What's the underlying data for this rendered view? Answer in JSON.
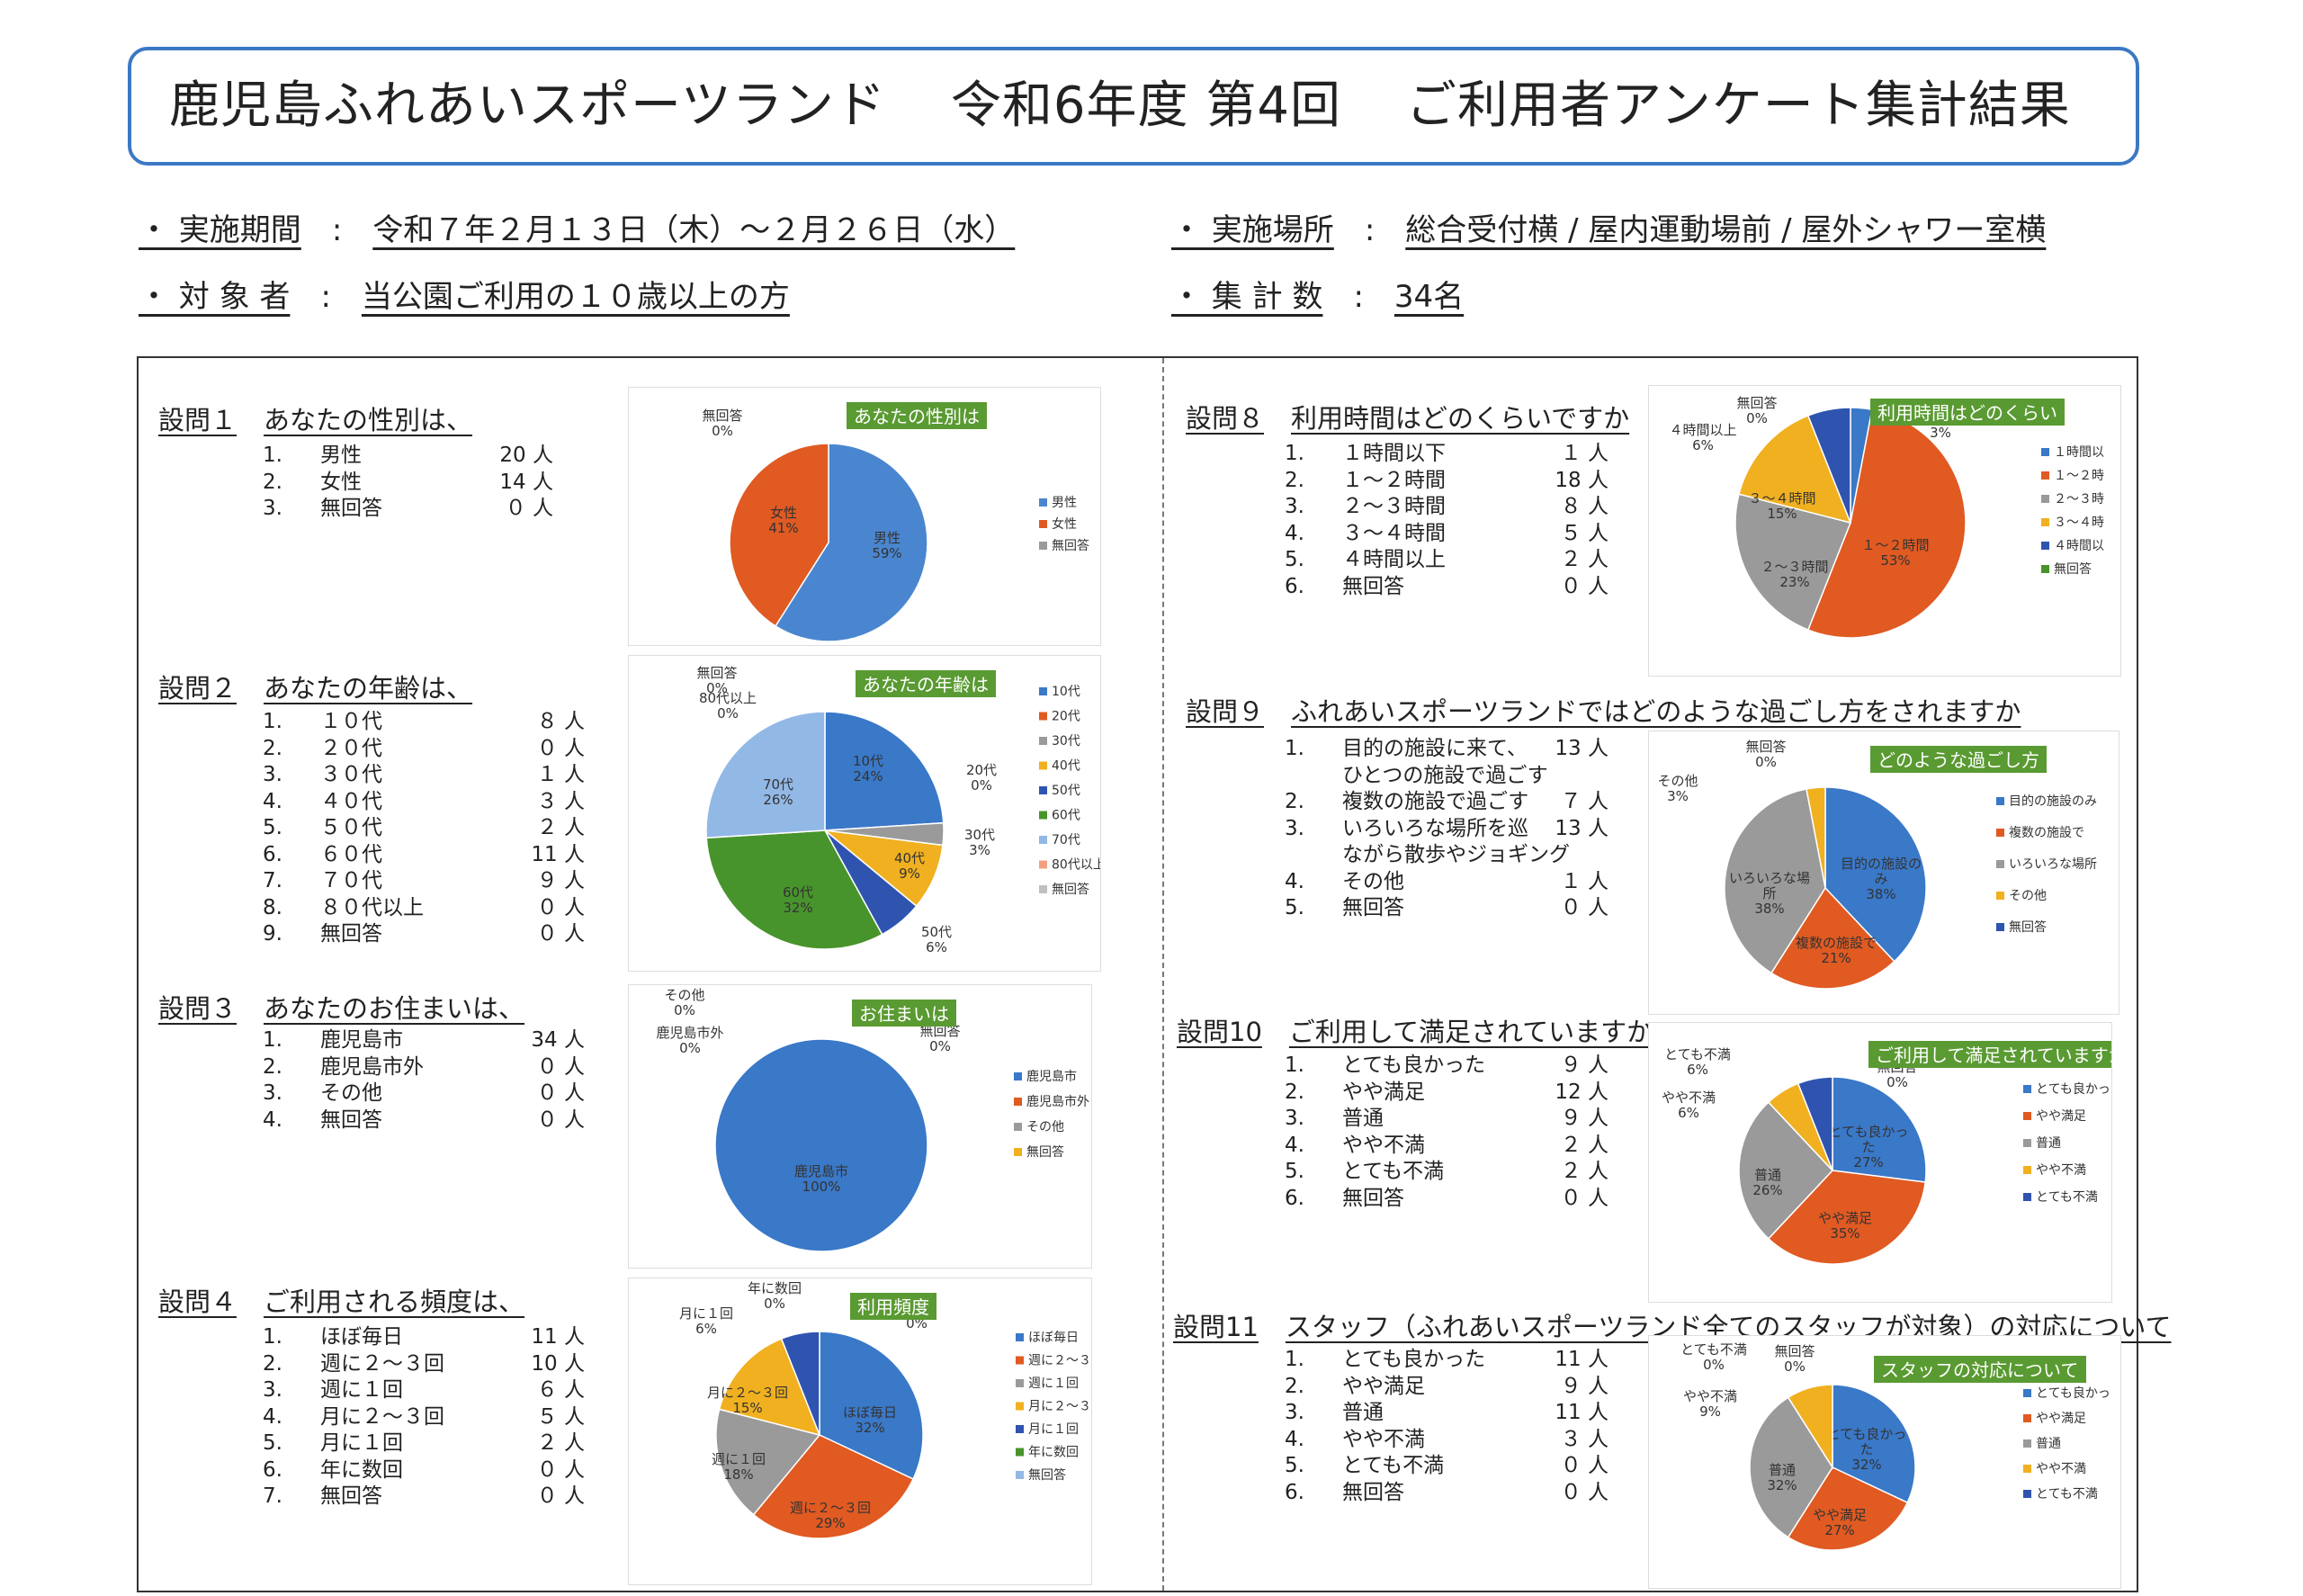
{
  "header": {
    "facility": "鹿児島ふれあいスポーツランド",
    "term": "令和6年度 第4回",
    "title": "ご利用者アンケート集計結果"
  },
  "meta": {
    "period_label": "・ 実施期間",
    "period_value": "令和７年２月１３日（木）～２月２６日（水）",
    "place_label": "・ 実施場所",
    "place_value": "総合受付横 / 屋内運動場前 / 屋外シャワー室横",
    "target_label": "・ 対 象 者",
    "target_value": "当公園ご利用の１０歳以上の方",
    "count_label": "・ 集 計 数",
    "count_value": "34名",
    "sep": ":"
  },
  "questions": [
    {
      "num": "設問１",
      "title": "あなたの性別は、",
      "answers": [
        {
          "n": "1.",
          "label": "男性",
          "count": "20 人"
        },
        {
          "n": "2.",
          "label": "女性",
          "count": "14 人"
        },
        {
          "n": "3.",
          "label": "無回答",
          "count": "０ 人"
        }
      ]
    },
    {
      "num": "設問２",
      "title": "あなたの年齢は、",
      "answers": [
        {
          "n": "1.",
          "label": "１０代",
          "count": "８ 人"
        },
        {
          "n": "2.",
          "label": "２０代",
          "count": "０ 人"
        },
        {
          "n": "3.",
          "label": "３０代",
          "count": "１ 人"
        },
        {
          "n": "4.",
          "label": "４０代",
          "count": "３ 人"
        },
        {
          "n": "5.",
          "label": "５０代",
          "count": "２ 人"
        },
        {
          "n": "6.",
          "label": "６０代",
          "count": "11 人"
        },
        {
          "n": "7.",
          "label": "７０代",
          "count": "９ 人"
        },
        {
          "n": "8.",
          "label": "８０代以上",
          "count": "０ 人"
        },
        {
          "n": "9.",
          "label": "無回答",
          "count": "０ 人"
        }
      ]
    },
    {
      "num": "設問３",
      "title": "あなたのお住まいは、",
      "answers": [
        {
          "n": "1.",
          "label": "鹿児島市",
          "count": "34 人"
        },
        {
          "n": "2.",
          "label": "鹿児島市外",
          "count": "０ 人"
        },
        {
          "n": "3.",
          "label": "その他",
          "count": "０ 人"
        },
        {
          "n": "4.",
          "label": "無回答",
          "count": "０ 人"
        }
      ]
    },
    {
      "num": "設問４",
      "title": "ご利用される頻度は、",
      "answers": [
        {
          "n": "1.",
          "label": "ほぼ毎日",
          "count": "11 人"
        },
        {
          "n": "2.",
          "label": "週に２～３回",
          "count": "10 人"
        },
        {
          "n": "3.",
          "label": "週に１回",
          "count": "６ 人"
        },
        {
          "n": "4.",
          "label": "月に２～３回",
          "count": "５ 人"
        },
        {
          "n": "5.",
          "label": "月に１回",
          "count": "２ 人"
        },
        {
          "n": "6.",
          "label": "年に数回",
          "count": "０ 人"
        },
        {
          "n": "7.",
          "label": "無回答",
          "count": "０ 人"
        }
      ]
    },
    {
      "num": "設問８",
      "title": "利用時間はどのくらいですか",
      "answers": [
        {
          "n": "1.",
          "label": "１時間以下",
          "count": "１ 人"
        },
        {
          "n": "2.",
          "label": "１～２時間",
          "count": "18 人"
        },
        {
          "n": "3.",
          "label": "２～３時間",
          "count": "８ 人"
        },
        {
          "n": "4.",
          "label": "３～４時間",
          "count": "５ 人"
        },
        {
          "n": "5.",
          "label": "４時間以上",
          "count": "２ 人"
        },
        {
          "n": "6.",
          "label": "無回答",
          "count": "０ 人"
        }
      ]
    },
    {
      "num": "設問９",
      "title": "ふれあいスポーツランドではどのような過ごし方をされますか",
      "answers": [
        {
          "n": "1.",
          "label": "目的の施設に来て、",
          "count": "13 人"
        },
        {
          "n": "",
          "label": "ひとつの施設で過ごす",
          "count": ""
        },
        {
          "n": "2.",
          "label": "複数の施設で過ごす",
          "count": "７ 人"
        },
        {
          "n": "3.",
          "label": "いろいろな場所を巡",
          "count": "13 人"
        },
        {
          "n": "",
          "label": "ながら散歩やジョギング",
          "count": ""
        },
        {
          "n": "4.",
          "label": "その他",
          "count": "１ 人"
        },
        {
          "n": "5.",
          "label": "無回答",
          "count": "０ 人"
        }
      ]
    },
    {
      "num": "設問10",
      "title": "ご利用して満足されていますか",
      "answers": [
        {
          "n": "1.",
          "label": "とても良かった",
          "count": "９ 人"
        },
        {
          "n": "2.",
          "label": "やや満足",
          "count": "12 人"
        },
        {
          "n": "3.",
          "label": "普通",
          "count": "９ 人"
        },
        {
          "n": "4.",
          "label": "やや不満",
          "count": "２ 人"
        },
        {
          "n": "5.",
          "label": "とても不満",
          "count": "２ 人"
        },
        {
          "n": "6.",
          "label": "無回答",
          "count": "０ 人"
        }
      ]
    },
    {
      "num": "設問11",
      "title": "スタッフ（ふれあいスポーツランド全てのスタッフが対象）の対応について",
      "answers": [
        {
          "n": "1.",
          "label": "とても良かった",
          "count": "11 人"
        },
        {
          "n": "2.",
          "label": "やや満足",
          "count": "９ 人"
        },
        {
          "n": "3.",
          "label": "普通",
          "count": "11 人"
        },
        {
          "n": "4.",
          "label": "やや不満",
          "count": "３ 人"
        },
        {
          "n": "5.",
          "label": "とても不満",
          "count": "０ 人"
        },
        {
          "n": "6.",
          "label": "無回答",
          "count": "０ 人"
        }
      ]
    }
  ],
  "chart_data": [
    {
      "type": "pie",
      "title": "あなたの性別は",
      "slices": [
        {
          "label": "男性",
          "value": 59,
          "text": "男性\n59%",
          "color": "#4a86d0"
        },
        {
          "label": "女性",
          "value": 41,
          "text": "女性\n41%",
          "color": "#e05a22"
        },
        {
          "label": "無回答",
          "value": 0,
          "text": "無回答\n0%",
          "color": "#9a9a9a"
        }
      ],
      "legend": [
        "男性",
        "女性",
        "無回答"
      ]
    },
    {
      "type": "pie",
      "title": "あなたの年齢は",
      "slices": [
        {
          "label": "10代",
          "value": 24,
          "text": "10代\n24%",
          "color": "#3a78c8"
        },
        {
          "label": "20代",
          "value": 0,
          "text": "20代\n0%",
          "color": "#e05a22"
        },
        {
          "label": "30代",
          "value": 3,
          "text": "30代\n3%",
          "color": "#9a9a9a"
        },
        {
          "label": "40代",
          "value": 9,
          "text": "40代\n9%",
          "color": "#f0b020"
        },
        {
          "label": "50代",
          "value": 6,
          "text": "50代\n6%",
          "color": "#2f54b0"
        },
        {
          "label": "60代",
          "value": 32,
          "text": "60代\n32%",
          "color": "#48942c"
        },
        {
          "label": "70代",
          "value": 26,
          "text": "70代\n26%",
          "color": "#92b8e6"
        },
        {
          "label": "80代以上",
          "value": 0,
          "text": "80代以上\n0%",
          "color": "#f0a080"
        },
        {
          "label": "無回答",
          "value": 0,
          "text": "無回答\n0%",
          "color": "#c0c0c0"
        }
      ],
      "legend": [
        "10代",
        "20代",
        "30代",
        "40代",
        "50代",
        "60代",
        "70代",
        "80代以上",
        "無回答"
      ]
    },
    {
      "type": "pie",
      "title": "お住まいは",
      "slices": [
        {
          "label": "鹿児島市",
          "value": 100,
          "text": "鹿児島市\n100%",
          "color": "#3a78c8"
        },
        {
          "label": "鹿児島市外",
          "value": 0,
          "text": "鹿児島市外\n0%",
          "color": "#e05a22"
        },
        {
          "label": "その他",
          "value": 0,
          "text": "その他\n0%",
          "color": "#9a9a9a"
        },
        {
          "label": "無回答",
          "value": 0,
          "text": "無回答\n0%",
          "color": "#f0b020"
        }
      ],
      "legend": [
        "鹿児島市",
        "鹿児島市外",
        "その他",
        "無回答"
      ]
    },
    {
      "type": "pie",
      "title": "利用頻度",
      "slices": [
        {
          "label": "ほぼ毎日",
          "value": 32,
          "text": "ほぼ毎日\n32%",
          "color": "#3a78c8"
        },
        {
          "label": "週に２～３回",
          "value": 29,
          "text": "週に２～３回\n29%",
          "color": "#e05a22"
        },
        {
          "label": "週に１回",
          "value": 18,
          "text": "週に１回\n18%",
          "color": "#9a9a9a"
        },
        {
          "label": "月に２～３回",
          "value": 15,
          "text": "月に２～３回\n15%",
          "color": "#f0b020"
        },
        {
          "label": "月に１回",
          "value": 6,
          "text": "月に１回\n6%",
          "color": "#2f54b0"
        },
        {
          "label": "年に数回",
          "value": 0,
          "text": "年に数回\n0%",
          "color": "#48942c"
        },
        {
          "label": "無回答",
          "value": 0,
          "text": "無回答\n0%",
          "color": "#92b8e6"
        }
      ],
      "legend": [
        "ほぼ毎日",
        "週に２～３",
        "週に１回",
        "月に２～３",
        "月に１回",
        "年に数回",
        "無回答"
      ]
    },
    {
      "type": "pie",
      "title": "利用時間はどのくらい",
      "slices": [
        {
          "label": "１時間以下",
          "value": 3,
          "text": "１時間以下\n3%",
          "color": "#3a78c8"
        },
        {
          "label": "１～２時間",
          "value": 53,
          "text": "１～２時間\n53%",
          "color": "#e05a22"
        },
        {
          "label": "２～３時間",
          "value": 23,
          "text": "２～３時間\n23%",
          "color": "#9a9a9a"
        },
        {
          "label": "３～４時間",
          "value": 15,
          "text": "３～４時間\n15%",
          "color": "#f0b020"
        },
        {
          "label": "４時間以上",
          "value": 6,
          "text": "４時間以上\n6%",
          "color": "#2f54b0"
        },
        {
          "label": "無回答",
          "value": 0,
          "text": "無回答\n0%",
          "color": "#48942c"
        }
      ],
      "legend": [
        "１時間以",
        "１～２時",
        "２～３時",
        "３～４時",
        "４時間以",
        "無回答"
      ]
    },
    {
      "type": "pie",
      "title": "どのような過ごし方",
      "slices": [
        {
          "label": "目的の施設のみ",
          "value": 38,
          "text": "目的の施設の\nみ\n38%",
          "color": "#3a78c8"
        },
        {
          "label": "複数の施設で",
          "value": 21,
          "text": "複数の施設で\n21%",
          "color": "#e05a22"
        },
        {
          "label": "いろいろな場所",
          "value": 38,
          "text": "いろいろな場\n所\n38%",
          "color": "#9a9a9a"
        },
        {
          "label": "その他",
          "value": 3,
          "text": "その他\n3%",
          "color": "#f0b020"
        },
        {
          "label": "無回答",
          "value": 0,
          "text": "無回答\n0%",
          "color": "#2f54b0"
        }
      ],
      "legend": [
        "目的の施設のみ",
        "複数の施設で",
        "いろいろな場所",
        "その他",
        "無回答"
      ]
    },
    {
      "type": "pie",
      "title": "ご利用して満足されていますか",
      "slices": [
        {
          "label": "とても良かった",
          "value": 27,
          "text": "とても良かっ\nた\n27%",
          "color": "#3a78c8"
        },
        {
          "label": "やや満足",
          "value": 35,
          "text": "やや満足\n35%",
          "color": "#e05a22"
        },
        {
          "label": "普通",
          "value": 26,
          "text": "普通\n26%",
          "color": "#9a9a9a"
        },
        {
          "label": "やや不満",
          "value": 6,
          "text": "やや不満\n6%",
          "color": "#f0b020"
        },
        {
          "label": "とても不満",
          "value": 6,
          "text": "とても不満\n6%",
          "color": "#2f54b0"
        },
        {
          "label": "無回答",
          "value": 0,
          "text": "無回答\n0%",
          "color": "#48942c"
        }
      ],
      "legend": [
        "とても良かっ",
        "やや満足",
        "普通",
        "やや不満",
        "とても不満"
      ]
    },
    {
      "type": "pie",
      "title": "スタッフの対応について",
      "slices": [
        {
          "label": "とても良かった",
          "value": 32,
          "text": "とても良かっ\nた\n32%",
          "color": "#3a78c8"
        },
        {
          "label": "やや満足",
          "value": 27,
          "text": "やや満足\n27%",
          "color": "#e05a22"
        },
        {
          "label": "普通",
          "value": 32,
          "text": "普通\n32%",
          "color": "#9a9a9a"
        },
        {
          "label": "やや不満",
          "value": 9,
          "text": "やや不満\n9%",
          "color": "#f0b020"
        },
        {
          "label": "とても不満",
          "value": 0,
          "text": "とても不満\n0%",
          "color": "#2f54b0"
        },
        {
          "label": "無回答",
          "value": 0,
          "text": "無回答\n0%",
          "color": "#48942c"
        }
      ],
      "legend": [
        "とても良かっ",
        "やや満足",
        "普通",
        "やや不満",
        "とても不満"
      ]
    }
  ],
  "colors": {
    "accent": "#3b78c4",
    "chart_title_bg": "#5a9a32"
  }
}
